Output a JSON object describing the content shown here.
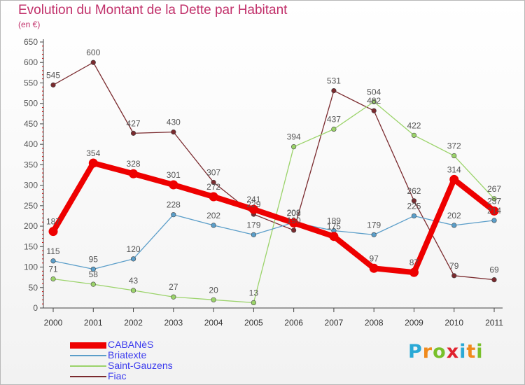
{
  "header": {
    "title": "Evolution du Montant de la Dette par Habitant",
    "subtitle": "(en €)"
  },
  "brand": {
    "text": "Proxiti",
    "letters": [
      {
        "ch": "P",
        "color": "#2aa9d6"
      },
      {
        "ch": "r",
        "color": "#f08a1c"
      },
      {
        "ch": "o",
        "color": "#78c02a"
      },
      {
        "ch": "x",
        "color": "#e0222e"
      },
      {
        "ch": "i",
        "color": "#2aa9d6"
      },
      {
        "ch": "t",
        "color": "#f08a1c"
      },
      {
        "ch": "i",
        "color": "#78c02a"
      }
    ]
  },
  "chart_data": {
    "type": "line",
    "title": "Evolution du Montant de la Dette par Habitant",
    "subtitle": "(en €)",
    "xlabel": "",
    "ylabel": "",
    "ylim": [
      0,
      650
    ],
    "yticks": [
      0,
      50,
      100,
      150,
      200,
      250,
      300,
      350,
      400,
      450,
      500,
      550,
      600,
      650
    ],
    "grid": false,
    "legend_position": "bottom-left",
    "categories": [
      "2000",
      "2001",
      "2002",
      "2003",
      "2004",
      "2005",
      "2006",
      "2007",
      "2008",
      "2009",
      "2010",
      "2011"
    ],
    "series": [
      {
        "name": "CABANèS",
        "color": "#ee0000",
        "emphasis": true,
        "values": [
          187,
          354,
          328,
          301,
          272,
          241,
          208,
          175,
          97,
          87,
          314,
          237
        ],
        "labels": [
          "187",
          "354",
          "328",
          "301",
          "272",
          "241",
          "208",
          "175",
          "97",
          "87",
          "314",
          "237"
        ]
      },
      {
        "name": "Briatexte",
        "color": "#5b9ec9",
        "emphasis": false,
        "values": [
          115,
          95,
          120,
          228,
          202,
          179,
          209,
          189,
          179,
          225,
          202,
          214
        ],
        "labels": [
          "115",
          "95",
          "120",
          "228",
          "202",
          "179",
          "209",
          "189",
          "179",
          "225",
          "202",
          "214"
        ]
      },
      {
        "name": "Saint-Gauzens",
        "color": "#9bd36a",
        "emphasis": false,
        "values": [
          71,
          58,
          43,
          27,
          20,
          13,
          394,
          437,
          504,
          422,
          372,
          267
        ],
        "labels": [
          "71",
          "58",
          "43",
          "27",
          "20",
          "13",
          "394",
          "437",
          "504",
          "422",
          "372",
          "267"
        ]
      },
      {
        "name": "Fiac",
        "color": "#7a2a2e",
        "emphasis": false,
        "values": [
          545,
          600,
          427,
          430,
          307,
          229,
          190,
          531,
          482,
          262,
          79,
          69
        ],
        "labels": [
          "545",
          "600",
          "427",
          "430",
          "307",
          "229",
          "190",
          "531",
          "482",
          "262",
          "79",
          "69"
        ]
      }
    ]
  }
}
